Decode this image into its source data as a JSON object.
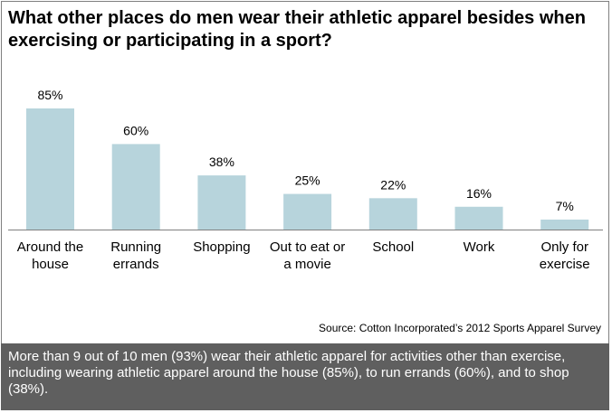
{
  "title": "What other places do men wear their athletic apparel besides when exercising or participating in a sport?",
  "source": "Source: Cotton Incorporated’s  2012 Sports Apparel Survey",
  "footer_text": "More than 9 out of 10 men (93%) wear their athletic apparel for activities other than exercise, including wearing athletic apparel around the house (85%), to run errands (60%), and to shop (38%).",
  "colors": {
    "bar": "#b7d4dc",
    "footer_bg": "#5f5f5f",
    "axis": "#7f7f7f"
  },
  "chart_data": {
    "type": "bar",
    "title": "What other places do men wear their athletic apparel besides when exercising or participating in a sport?",
    "categories": [
      [
        "Around the",
        "house"
      ],
      [
        "Running",
        "errands"
      ],
      [
        "Shopping"
      ],
      [
        "Out to eat or",
        "a movie"
      ],
      [
        "School"
      ],
      [
        "Work"
      ],
      [
        "Only for",
        "exercise"
      ]
    ],
    "values": [
      85,
      60,
      38,
      25,
      22,
      16,
      7
    ],
    "data_labels": [
      "85%",
      "60%",
      "38%",
      "25%",
      "22%",
      "16%",
      "7%"
    ],
    "xlabel": "",
    "ylabel": "",
    "ylim": [
      0,
      85
    ],
    "grid": false,
    "legend": "none"
  }
}
